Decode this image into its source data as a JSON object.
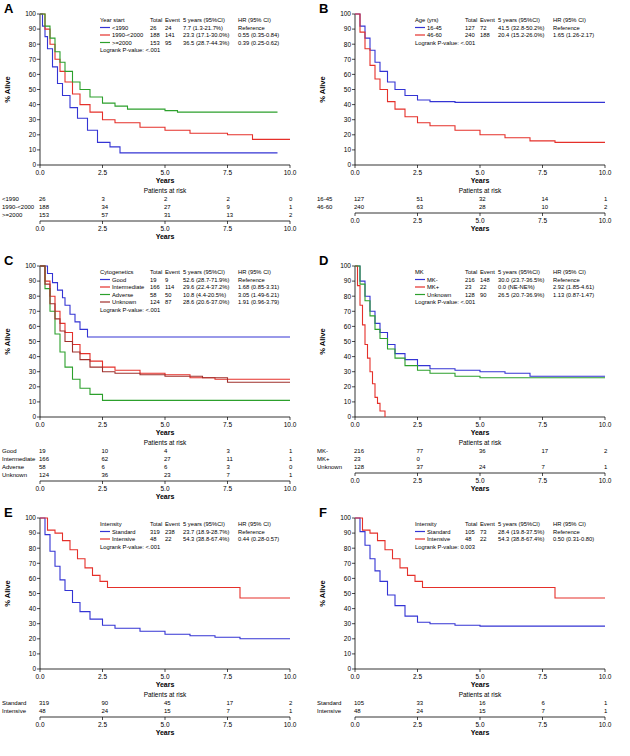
{
  "chart_data": [
    {
      "type": "line",
      "title": "A",
      "x_label": "Years",
      "y_label": "% Alive",
      "line_style": "step",
      "grid": false,
      "legend": "top-right",
      "xlim": [
        0,
        10
      ],
      "ylim": [
        0,
        100
      ],
      "xticks": [
        {
          "value": 0,
          "label": "0.0"
        },
        2.5,
        {
          "value": 5,
          "label": "5.0"
        },
        7.5,
        {
          "value": 10,
          "label": "10.0"
        }
      ],
      "yticks": [
        0,
        10,
        20,
        30,
        40,
        50,
        60,
        70,
        80,
        90,
        100
      ],
      "legend_title": "Year start",
      "legend_columns": [
        "Total",
        "Event",
        "5 years (95%CI)",
        "HR (95% CI)"
      ],
      "logrank": "Logrank P-value: <.001",
      "risk_table_title": "Patients at risk",
      "series": [
        {
          "name": "<1990",
          "color": "#3434d4",
          "total": 26,
          "event": 24,
          "five_year": "7.7 (1.3-21.7%)",
          "hr": "Reference",
          "at_risk": [
            26,
            3,
            2,
            2,
            0
          ],
          "x": [
            0,
            0.1,
            0.2,
            0.3,
            0.5,
            0.7,
            0.9,
            1.2,
            1.5,
            1.9,
            2.3,
            2.8,
            3.2,
            9.5
          ],
          "values": [
            100,
            92,
            85,
            77,
            65,
            54,
            46,
            38,
            31,
            23,
            15,
            12,
            8,
            8
          ]
        },
        {
          "name": "1990-<2000",
          "color": "#e5302a",
          "total": 188,
          "event": 141,
          "five_year": "23.3 (17.1-30.0%)",
          "hr": "0.55 (0.35-0.84)",
          "at_risk": [
            188,
            34,
            27,
            9,
            1
          ],
          "x": [
            0,
            0.2,
            0.4,
            0.6,
            0.8,
            1.0,
            1.3,
            1.6,
            2.0,
            2.5,
            3.0,
            4.0,
            5.0,
            6.0,
            7.5,
            8.5,
            10
          ],
          "values": [
            100,
            90,
            80,
            70,
            62,
            55,
            47,
            40,
            35,
            30,
            28,
            25,
            23,
            21,
            20,
            17,
            17
          ]
        },
        {
          "name": ">=2000",
          "color": "#2ca02c",
          "total": 153,
          "event": 95,
          "five_year": "36.5 (28.7-44.3%)",
          "hr": "0.39 (0.25-0.62)",
          "at_risk": [
            153,
            57,
            31,
            13,
            2
          ],
          "x": [
            0,
            0.2,
            0.4,
            0.6,
            0.8,
            1.0,
            1.3,
            1.6,
            2.0,
            2.5,
            3.0,
            3.5,
            5.0,
            5.5,
            9.5
          ],
          "values": [
            100,
            92,
            84,
            75,
            68,
            62,
            55,
            50,
            45,
            41,
            39,
            37,
            36,
            35,
            35
          ]
        }
      ]
    },
    {
      "type": "line",
      "title": "B",
      "x_label": "Years",
      "y_label": "% Alive",
      "line_style": "step",
      "grid": false,
      "legend": "top-right",
      "xlim": [
        0,
        10
      ],
      "ylim": [
        0,
        100
      ],
      "xticks": [
        {
          "value": 0,
          "label": "0.0"
        },
        2.5,
        {
          "value": 5,
          "label": "5.0"
        },
        7.5,
        {
          "value": 10,
          "label": "10.0"
        }
      ],
      "yticks": [
        0,
        10,
        20,
        30,
        40,
        50,
        60,
        70,
        80,
        90,
        100
      ],
      "legend_title": "Age (yrs)",
      "legend_columns": [
        "Total",
        "Event",
        "5 years (95%CI)",
        "HR (95% CI)"
      ],
      "logrank": "Logrank P-value: <.001",
      "risk_table_title": "Patients at risk",
      "series": [
        {
          "name": "16-45",
          "color": "#3434d4",
          "total": 127,
          "event": 72,
          "five_year": "41.5 (32.8-50.2%)",
          "hr": "Reference",
          "at_risk": [
            127,
            51,
            32,
            14,
            1
          ],
          "x": [
            0,
            0.2,
            0.4,
            0.6,
            0.8,
            1.0,
            1.3,
            1.6,
            2.0,
            2.5,
            3.0,
            4.0,
            10
          ],
          "values": [
            100,
            92,
            84,
            76,
            68,
            62,
            55,
            50,
            46,
            43,
            42,
            41.5,
            41.5
          ]
        },
        {
          "name": "46-60",
          "color": "#e5302a",
          "total": 240,
          "event": 188,
          "five_year": "20.4 (15.2-26.0%)",
          "hr": "1.65 (1.26-2.17)",
          "at_risk": [
            240,
            63,
            28,
            10,
            2
          ],
          "x": [
            0,
            0.2,
            0.4,
            0.6,
            0.8,
            1.0,
            1.3,
            1.6,
            2.0,
            2.5,
            3.0,
            4.0,
            5.0,
            6.0,
            7.0,
            8.0,
            10
          ],
          "values": [
            100,
            88,
            77,
            66,
            57,
            50,
            42,
            37,
            32,
            28,
            26,
            23,
            20,
            18,
            16,
            15,
            15
          ]
        }
      ]
    },
    {
      "type": "line",
      "title": "C",
      "x_label": "Years",
      "y_label": "% Alive",
      "line_style": "step",
      "grid": false,
      "legend": "top-right",
      "xlim": [
        0,
        10
      ],
      "ylim": [
        0,
        100
      ],
      "xticks": [
        {
          "value": 0,
          "label": "0.0"
        },
        2.5,
        {
          "value": 5,
          "label": "5.0"
        },
        7.5,
        {
          "value": 10,
          "label": "10.0"
        }
      ],
      "yticks": [
        0,
        10,
        20,
        30,
        40,
        50,
        60,
        70,
        80,
        90,
        100
      ],
      "legend_title": "Cytogenetics",
      "legend_columns": [
        "Total",
        "Event",
        "5 years (95%CI)",
        "HR (95% CI)"
      ],
      "logrank": "Logrank P-value: <.001",
      "risk_table_title": "Patients at risk",
      "series": [
        {
          "name": "Good",
          "color": "#3434d4",
          "total": 19,
          "event": 9,
          "five_year": "52.6 (28.7-71.9%)",
          "hr": "Reference",
          "at_risk": [
            19,
            10,
            4,
            3,
            1
          ],
          "x": [
            0,
            0.3,
            0.5,
            0.7,
            0.9,
            1.0,
            1.2,
            1.4,
            1.6,
            1.9,
            10
          ],
          "values": [
            100,
            95,
            89,
            84,
            79,
            74,
            68,
            63,
            58,
            53,
            53
          ]
        },
        {
          "name": "Intermediate",
          "color": "#e5302a",
          "total": 166,
          "event": 114,
          "five_year": "29.6 (22.4-37.2%)",
          "hr": "1.68 (0.85-3.31)",
          "at_risk": [
            166,
            62,
            27,
            11,
            1
          ],
          "x": [
            0,
            0.2,
            0.4,
            0.6,
            0.8,
            1.0,
            1.3,
            1.6,
            2.0,
            2.5,
            3.0,
            4.0,
            5.0,
            6.0,
            7.0,
            10
          ],
          "values": [
            100,
            90,
            80,
            70,
            62,
            56,
            48,
            42,
            37,
            33,
            31,
            29,
            28,
            26,
            25,
            25
          ]
        },
        {
          "name": "Adverse",
          "color": "#2ca02c",
          "total": 58,
          "event": 50,
          "five_year": "10.8 (4.4-20.5%)",
          "hr": "3.05 (1.49-6.21)",
          "at_risk": [
            58,
            6,
            6,
            3,
            0
          ],
          "x": [
            0,
            0.2,
            0.4,
            0.6,
            0.8,
            1.0,
            1.3,
            1.6,
            2.0,
            2.5,
            10
          ],
          "values": [
            100,
            85,
            70,
            55,
            43,
            33,
            25,
            19,
            15,
            11,
            11
          ]
        },
        {
          "name": "Unknown",
          "color": "#a0302c",
          "total": 124,
          "event": 87,
          "five_year": "28.6 (20.6-37.0%)",
          "hr": "1.91 (0.96-3.79)",
          "at_risk": [
            124,
            36,
            23,
            7,
            1
          ],
          "x": [
            0,
            0.2,
            0.4,
            0.6,
            0.8,
            1.0,
            1.3,
            1.6,
            2.0,
            2.5,
            3.0,
            4.0,
            5.0,
            6.5,
            7.5,
            10
          ],
          "values": [
            100,
            88,
            75,
            65,
            57,
            50,
            43,
            38,
            33,
            30,
            29,
            28,
            27,
            26,
            23,
            23
          ]
        }
      ]
    },
    {
      "type": "line",
      "title": "D",
      "x_label": "Years",
      "y_label": "% Alive",
      "line_style": "step",
      "grid": false,
      "legend": "top-right",
      "xlim": [
        0,
        10
      ],
      "ylim": [
        0,
        100
      ],
      "xticks": [
        {
          "value": 0,
          "label": "0.0"
        },
        2.5,
        {
          "value": 5,
          "label": "5.0"
        },
        7.5,
        {
          "value": 10,
          "label": "10.0"
        }
      ],
      "yticks": [
        0,
        10,
        20,
        30,
        40,
        50,
        60,
        70,
        80,
        90,
        100
      ],
      "legend_title": "MK",
      "legend_columns": [
        "Total",
        "Event",
        "5 years (95%CI)",
        "HR (95% CI)"
      ],
      "logrank": "Logrank P-value: <.001",
      "risk_table_title": "Patients at risk",
      "series": [
        {
          "name": "MK-",
          "color": "#3434d4",
          "total": 216,
          "event": 148,
          "five_year": "30.0 (23.7-36.5%)",
          "hr": "Reference",
          "at_risk": [
            216,
            77,
            36,
            17,
            2
          ],
          "x": [
            0,
            0.2,
            0.4,
            0.6,
            0.8,
            1.0,
            1.3,
            1.6,
            2.0,
            2.5,
            3.0,
            4.0,
            5.0,
            6.0,
            7.0,
            10
          ],
          "values": [
            100,
            90,
            80,
            70,
            62,
            56,
            48,
            42,
            38,
            34,
            32,
            31,
            30,
            29,
            27,
            27
          ]
        },
        {
          "name": "MK+",
          "color": "#e5302a",
          "total": 23,
          "event": 22,
          "five_year": "0.0 (NE-NE%)",
          "hr": "2.92 (1.85-4.61)",
          "at_risk": [
            23,
            0,
            null,
            null,
            null
          ],
          "x": [
            0,
            0.1,
            0.2,
            0.3,
            0.4,
            0.5,
            0.6,
            0.7,
            0.8,
            0.9,
            1.0,
            1.2
          ],
          "values": [
            100,
            87,
            74,
            61,
            48,
            39,
            30,
            22,
            13,
            9,
            4,
            0
          ]
        },
        {
          "name": "Unknown",
          "color": "#2ca02c",
          "total": 128,
          "event": 90,
          "five_year": "26.5 (20.7-36.9%)",
          "hr": "1.13 (0.87-1.47)",
          "at_risk": [
            128,
            37,
            24,
            7,
            1
          ],
          "x": [
            0,
            0.2,
            0.4,
            0.6,
            0.8,
            1.0,
            1.3,
            1.6,
            2.0,
            2.5,
            3.0,
            4.0,
            5.0,
            10
          ],
          "values": [
            100,
            88,
            77,
            67,
            58,
            52,
            45,
            39,
            34,
            31,
            29,
            27,
            26,
            26
          ]
        }
      ]
    },
    {
      "type": "line",
      "title": "E",
      "x_label": "Years",
      "y_label": "% Alive",
      "line_style": "step",
      "grid": false,
      "legend": "top-right",
      "xlim": [
        0,
        10
      ],
      "ylim": [
        0,
        100
      ],
      "xticks": [
        {
          "value": 0,
          "label": "0.0"
        },
        2.5,
        {
          "value": 5,
          "label": "5.0"
        },
        7.5,
        {
          "value": 10,
          "label": "10.0"
        }
      ],
      "yticks": [
        0,
        10,
        20,
        30,
        40,
        50,
        60,
        70,
        80,
        90,
        100
      ],
      "legend_title": "Intensity",
      "legend_columns": [
        "Total",
        "Event",
        "5 years (95%CI)",
        "HR (95% CI)"
      ],
      "logrank": "Logrank P-value: <.001",
      "risk_table_title": "Patients at risk",
      "series": [
        {
          "name": "Standard",
          "color": "#3434d4",
          "total": 319,
          "event": 238,
          "five_year": "23.7 (18.9-28.7%)",
          "hr": "Reference",
          "at_risk": [
            319,
            90,
            45,
            17,
            2
          ],
          "x": [
            0,
            0.2,
            0.4,
            0.6,
            0.8,
            1.0,
            1.3,
            1.6,
            2.0,
            2.5,
            3.0,
            4.0,
            5.0,
            6.0,
            7.0,
            8.0,
            10
          ],
          "values": [
            100,
            89,
            78,
            68,
            59,
            52,
            44,
            38,
            33,
            29,
            27,
            25,
            23,
            22,
            21,
            20,
            20
          ]
        },
        {
          "name": "Intensive",
          "color": "#e5302a",
          "total": 48,
          "event": 22,
          "five_year": "54.3 (38.8-67.4%)",
          "hr": "0.44 (0.28-0.57)",
          "at_risk": [
            48,
            24,
            15,
            7,
            1
          ],
          "x": [
            0,
            0.3,
            0.6,
            0.9,
            1.2,
            1.5,
            1.8,
            2.1,
            2.4,
            2.7,
            7.5,
            8.0,
            10
          ],
          "values": [
            100,
            92,
            90,
            85,
            79,
            73,
            67,
            62,
            58,
            54,
            54,
            47,
            47
          ]
        }
      ]
    },
    {
      "type": "line",
      "title": "F",
      "x_label": "Years",
      "y_label": "% Alive",
      "line_style": "step",
      "grid": false,
      "legend": "top-right",
      "xlim": [
        0,
        10
      ],
      "ylim": [
        0,
        100
      ],
      "xticks": [
        {
          "value": 0,
          "label": "0.0"
        },
        2.5,
        {
          "value": 5,
          "label": "5.0"
        },
        7.5,
        {
          "value": 10,
          "label": "10.0"
        }
      ],
      "yticks": [
        0,
        10,
        20,
        30,
        40,
        50,
        60,
        70,
        80,
        90,
        100
      ],
      "legend_title": "Intensity",
      "legend_columns": [
        "Total",
        "Event",
        "5 years (95%CI)",
        "HR (95% CI)"
      ],
      "logrank": "Logrank P-value: 0.003",
      "risk_table_title": "Patients at risk",
      "series": [
        {
          "name": "Standard",
          "color": "#3434d4",
          "total": 105,
          "event": 73,
          "five_year": "28.4 (19.8-37.5%)",
          "hr": "Reference",
          "at_risk": [
            105,
            33,
            16,
            6,
            1
          ],
          "x": [
            0,
            0.2,
            0.4,
            0.6,
            0.8,
            1.0,
            1.3,
            1.6,
            2.0,
            2.5,
            3.0,
            4.0,
            5.0,
            10
          ],
          "values": [
            100,
            91,
            82,
            73,
            65,
            58,
            49,
            42,
            35,
            31,
            30,
            29,
            28.4,
            28.4
          ]
        },
        {
          "name": "Intensive",
          "color": "#e5302a",
          "total": 48,
          "event": 22,
          "five_year": "54.3 (38.8-67.4%)",
          "hr": "0.50 (0.31-0.80)",
          "at_risk": [
            48,
            24,
            15,
            7,
            1
          ],
          "x": [
            0,
            0.3,
            0.6,
            0.9,
            1.2,
            1.5,
            1.8,
            2.1,
            2.4,
            2.7,
            7.5,
            8.0,
            10
          ],
          "values": [
            100,
            92,
            90,
            85,
            79,
            73,
            67,
            62,
            58,
            54,
            54,
            47,
            47
          ]
        }
      ]
    }
  ]
}
